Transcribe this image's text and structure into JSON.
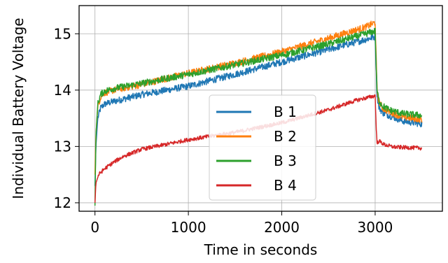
{
  "chart_data": {
    "type": "line",
    "xlabel": "Time in seconds",
    "ylabel": "Individual Battery Voltage",
    "xlim": [
      -170,
      3720
    ],
    "ylim": [
      11.85,
      15.5
    ],
    "xticks": [
      0,
      1000,
      2000,
      3000
    ],
    "yticks": [
      12,
      13,
      14,
      15
    ],
    "grid": true,
    "legend_position": "center-right",
    "series": [
      {
        "name": "B 1",
        "color": "#1f77b4",
        "noise": 0.06,
        "x": [
          0,
          10,
          30,
          60,
          100,
          200,
          500,
          1000,
          1500,
          2000,
          2500,
          2900,
          3000,
          3010,
          3020,
          3040,
          3080,
          3150,
          3300,
          3500
        ],
        "y": [
          12.3,
          13.0,
          13.5,
          13.68,
          13.75,
          13.8,
          13.92,
          14.07,
          14.28,
          14.5,
          14.72,
          14.9,
          14.95,
          14.4,
          13.9,
          13.7,
          13.6,
          13.55,
          13.45,
          13.4
        ]
      },
      {
        "name": "B 2",
        "color": "#ff7f0e",
        "noise": 0.06,
        "x": [
          0,
          10,
          30,
          60,
          100,
          200,
          500,
          1000,
          1500,
          2000,
          2500,
          2900,
          3000,
          3010,
          3020,
          3040,
          3080,
          3150,
          3300,
          3500
        ],
        "y": [
          12.5,
          13.2,
          13.7,
          13.88,
          13.95,
          14.0,
          14.1,
          14.3,
          14.48,
          14.68,
          14.92,
          15.12,
          15.2,
          14.6,
          14.0,
          13.8,
          13.68,
          13.62,
          13.52,
          13.48
        ]
      },
      {
        "name": "B 3",
        "color": "#2ca02c",
        "noise": 0.06,
        "x": [
          0,
          10,
          30,
          60,
          100,
          200,
          500,
          1000,
          1500,
          2000,
          2500,
          2900,
          3000,
          3010,
          3020,
          3040,
          3080,
          3150,
          3300,
          3500
        ],
        "y": [
          11.95,
          13.2,
          13.75,
          13.92,
          13.98,
          14.03,
          14.12,
          14.28,
          14.45,
          14.62,
          14.82,
          15.0,
          15.05,
          14.5,
          14.0,
          13.82,
          13.72,
          13.65,
          13.58,
          13.55
        ]
      },
      {
        "name": "B 4",
        "color": "#d62728",
        "noise": 0.035,
        "x": [
          0,
          10,
          40,
          100,
          200,
          300,
          500,
          800,
          1000,
          1500,
          2000,
          2500,
          2800,
          3000,
          3010,
          3020,
          3040,
          3100,
          3200,
          3500
        ],
        "y": [
          12.0,
          12.35,
          12.5,
          12.6,
          12.72,
          12.82,
          12.95,
          13.05,
          13.12,
          13.25,
          13.42,
          13.65,
          13.82,
          13.9,
          13.4,
          13.05,
          13.1,
          13.03,
          12.99,
          12.97
        ]
      }
    ]
  }
}
